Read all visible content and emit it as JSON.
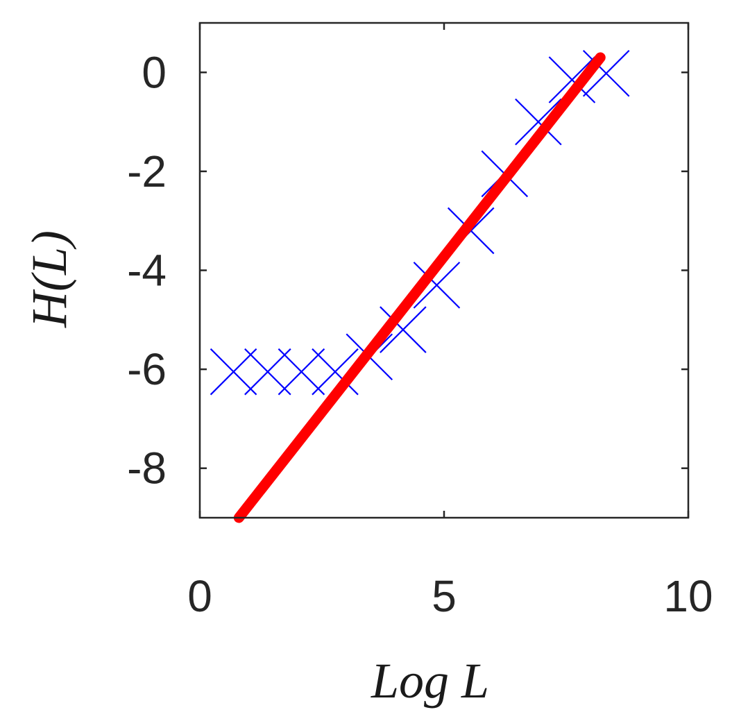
{
  "chart_data": {
    "type": "scatter",
    "xlabel": "Log L",
    "ylabel": "H(L)",
    "xlim": [
      0,
      10
    ],
    "ylim": [
      -9,
      1
    ],
    "xticks": [
      0,
      5,
      10
    ],
    "xtick_labels": [
      "0",
      "5",
      "10"
    ],
    "yticks": [
      0,
      -2,
      -4,
      -6,
      -8
    ],
    "ytick_labels": [
      "0",
      "-2",
      "-4",
      "-6",
      "-8"
    ],
    "grid": false,
    "colors": {
      "markers": "#0000ff",
      "fit_line": "#ff0000",
      "axes": "#262626"
    },
    "series": [
      {
        "marker": "x",
        "x": [
          0.69,
          1.39,
          2.08,
          2.77,
          3.47,
          4.16,
          4.85,
          5.55,
          6.24,
          6.93,
          7.62,
          8.32
        ],
        "y": [
          -6.05,
          -6.05,
          -6.05,
          -6.05,
          -5.75,
          -5.2,
          -4.3,
          -3.2,
          -2.05,
          -1.0,
          -0.15,
          -0.02
        ]
      },
      {
        "marker": "line",
        "x": [
          0.8,
          8.2
        ],
        "y": [
          -9.0,
          0.3
        ]
      }
    ]
  }
}
